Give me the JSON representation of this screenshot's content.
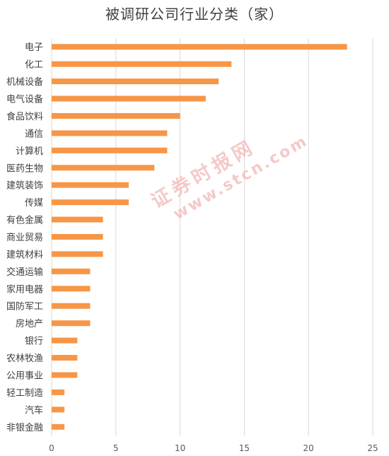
{
  "chart_data": {
    "type": "bar",
    "orientation": "horizontal",
    "title": "被调研公司行业分类（家）",
    "categories": [
      "电子",
      "化工",
      "机械设备",
      "电气设备",
      "食品饮料",
      "通信",
      "计算机",
      "医药生物",
      "建筑装饰",
      "传媒",
      "有色金属",
      "商业贸易",
      "建筑材料",
      "交通运输",
      "家用电器",
      "国防军工",
      "房地产",
      "银行",
      "农林牧渔",
      "公用事业",
      "轻工制造",
      "汽车",
      "非银金融"
    ],
    "values": [
      23,
      14,
      13,
      12,
      10,
      9,
      9,
      8,
      6,
      6,
      4,
      4,
      4,
      3,
      3,
      3,
      3,
      2,
      2,
      2,
      1,
      1,
      1
    ],
    "xlim": [
      0,
      25
    ],
    "xticks": [
      "0",
      "5",
      "10",
      "15",
      "20",
      "25"
    ],
    "grid": "vertical",
    "bar_color": "#F79646"
  },
  "watermark": {
    "text_cn": "证券时报网",
    "text_url": "www.stcn.com"
  }
}
